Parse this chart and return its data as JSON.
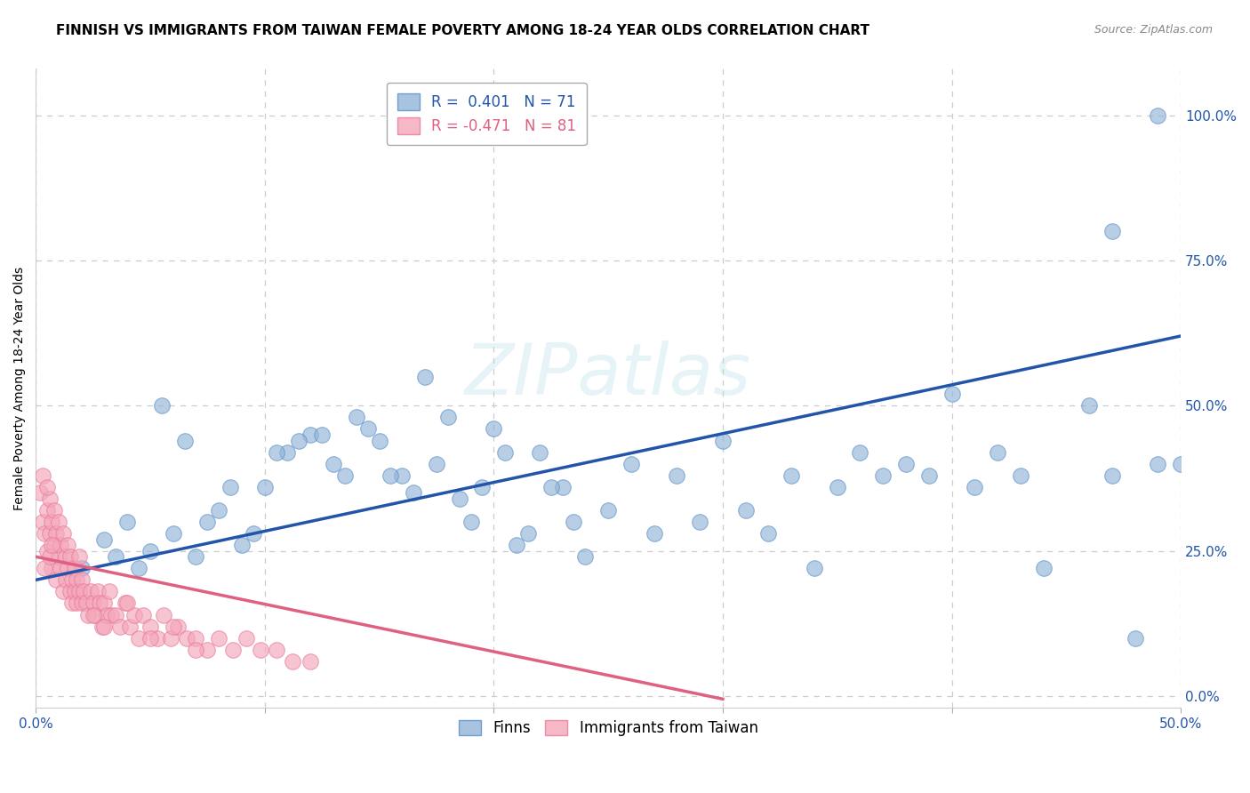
{
  "title": "FINNISH VS IMMIGRANTS FROM TAIWAN FEMALE POVERTY AMONG 18-24 YEAR OLDS CORRELATION CHART",
  "source": "Source: ZipAtlas.com",
  "ylabel": "Female Poverty Among 18-24 Year Olds",
  "xlim": [
    0.0,
    0.5
  ],
  "ylim": [
    -0.02,
    1.08
  ],
  "xtick_positions": [
    0.0,
    0.1,
    0.2,
    0.3,
    0.4,
    0.5
  ],
  "xtick_labels_show": [
    "0.0%",
    "",
    "",
    "",
    "",
    "50.0%"
  ],
  "yticks_right": [
    0.0,
    0.25,
    0.5,
    0.75,
    1.0
  ],
  "ytick_labels_right": [
    "0.0%",
    "25.0%",
    "50.0%",
    "75.0%",
    "100.0%"
  ],
  "legend_line1": "R =  0.401   N = 71",
  "legend_line2": "R = -0.471   N = 81",
  "blue_color": "#92b4d8",
  "pink_color": "#f4a7b9",
  "blue_edge_color": "#5b8fc9",
  "pink_edge_color": "#e87898",
  "blue_line_color": "#2255AA",
  "pink_line_color": "#e06080",
  "watermark": "ZIPatlas",
  "grid_color": "#cccccc",
  "bg_color": "#ffffff",
  "title_fontsize": 11,
  "axis_label_fontsize": 10,
  "tick_fontsize": 11,
  "blue_line_x": [
    0.0,
    0.5
  ],
  "blue_line_y": [
    0.2,
    0.62
  ],
  "pink_line_x": [
    0.0,
    0.3
  ],
  "pink_line_y": [
    0.24,
    -0.005
  ],
  "finns_x": [
    0.02,
    0.03,
    0.04,
    0.05,
    0.06,
    0.07,
    0.08,
    0.09,
    0.1,
    0.11,
    0.12,
    0.13,
    0.14,
    0.15,
    0.16,
    0.17,
    0.18,
    0.19,
    0.2,
    0.21,
    0.22,
    0.23,
    0.24,
    0.25,
    0.26,
    0.27,
    0.28,
    0.29,
    0.3,
    0.31,
    0.32,
    0.33,
    0.34,
    0.35,
    0.36,
    0.37,
    0.38,
    0.39,
    0.4,
    0.41,
    0.42,
    0.43,
    0.44,
    0.46,
    0.47,
    0.48,
    0.49,
    0.5,
    0.47,
    0.49,
    0.035,
    0.045,
    0.055,
    0.065,
    0.075,
    0.085,
    0.095,
    0.105,
    0.115,
    0.125,
    0.135,
    0.145,
    0.155,
    0.165,
    0.175,
    0.185,
    0.195,
    0.205,
    0.215,
    0.225,
    0.235
  ],
  "finns_y": [
    0.22,
    0.27,
    0.3,
    0.25,
    0.28,
    0.24,
    0.32,
    0.26,
    0.36,
    0.42,
    0.45,
    0.4,
    0.48,
    0.44,
    0.38,
    0.55,
    0.48,
    0.3,
    0.46,
    0.26,
    0.42,
    0.36,
    0.24,
    0.32,
    0.4,
    0.28,
    0.38,
    0.3,
    0.44,
    0.32,
    0.28,
    0.38,
    0.22,
    0.36,
    0.42,
    0.38,
    0.4,
    0.38,
    0.52,
    0.36,
    0.42,
    0.38,
    0.22,
    0.5,
    0.38,
    0.1,
    0.4,
    0.4,
    0.8,
    1.0,
    0.24,
    0.22,
    0.5,
    0.44,
    0.3,
    0.36,
    0.28,
    0.42,
    0.44,
    0.45,
    0.38,
    0.46,
    0.38,
    0.35,
    0.4,
    0.34,
    0.36,
    0.42,
    0.28,
    0.36,
    0.3
  ],
  "taiwan_x": [
    0.002,
    0.003,
    0.004,
    0.005,
    0.005,
    0.006,
    0.006,
    0.007,
    0.007,
    0.008,
    0.008,
    0.009,
    0.009,
    0.01,
    0.01,
    0.011,
    0.011,
    0.012,
    0.012,
    0.013,
    0.013,
    0.014,
    0.014,
    0.015,
    0.015,
    0.016,
    0.016,
    0.017,
    0.017,
    0.018,
    0.018,
    0.019,
    0.019,
    0.02,
    0.02,
    0.021,
    0.022,
    0.023,
    0.024,
    0.025,
    0.026,
    0.027,
    0.028,
    0.029,
    0.03,
    0.031,
    0.032,
    0.033,
    0.035,
    0.037,
    0.039,
    0.041,
    0.043,
    0.045,
    0.047,
    0.05,
    0.053,
    0.056,
    0.059,
    0.062,
    0.066,
    0.07,
    0.075,
    0.08,
    0.086,
    0.092,
    0.098,
    0.105,
    0.112,
    0.12,
    0.003,
    0.004,
    0.005,
    0.006,
    0.007,
    0.025,
    0.03,
    0.04,
    0.05,
    0.06,
    0.07
  ],
  "taiwan_y": [
    0.35,
    0.3,
    0.28,
    0.32,
    0.25,
    0.34,
    0.28,
    0.3,
    0.22,
    0.26,
    0.32,
    0.2,
    0.28,
    0.24,
    0.3,
    0.22,
    0.26,
    0.18,
    0.28,
    0.24,
    0.2,
    0.26,
    0.22,
    0.18,
    0.24,
    0.2,
    0.16,
    0.22,
    0.18,
    0.2,
    0.16,
    0.24,
    0.18,
    0.2,
    0.16,
    0.18,
    0.16,
    0.14,
    0.18,
    0.16,
    0.14,
    0.18,
    0.16,
    0.12,
    0.16,
    0.14,
    0.18,
    0.14,
    0.14,
    0.12,
    0.16,
    0.12,
    0.14,
    0.1,
    0.14,
    0.12,
    0.1,
    0.14,
    0.1,
    0.12,
    0.1,
    0.1,
    0.08,
    0.1,
    0.08,
    0.1,
    0.08,
    0.08,
    0.06,
    0.06,
    0.38,
    0.22,
    0.36,
    0.24,
    0.26,
    0.14,
    0.12,
    0.16,
    0.1,
    0.12,
    0.08
  ]
}
